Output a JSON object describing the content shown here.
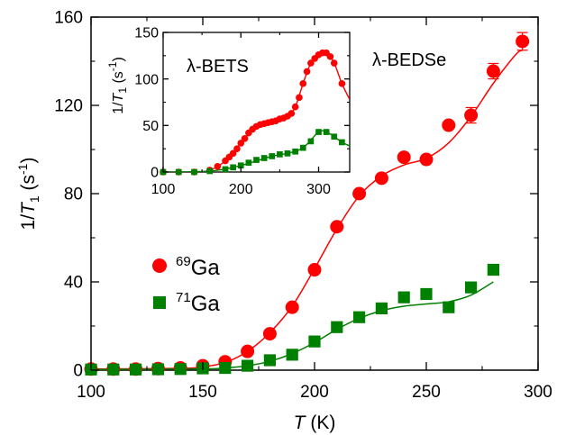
{
  "chart_data": [
    {
      "type": "scatter",
      "panel": "main",
      "xlabel_var": "T",
      "xlabel_unit": " (K)",
      "ylabel_pre": "1/",
      "ylabel_var": "T",
      "ylabel_sub": "1",
      "ylabel_unit": " (s",
      "ylabel_exp": "-1",
      "ylabel_close": ")",
      "xlim": [
        100,
        300
      ],
      "ylim": [
        0,
        160
      ],
      "xticks": [
        100,
        150,
        200,
        250,
        300
      ],
      "yticks": [
        0,
        40,
        80,
        120,
        160
      ],
      "annotation": "λ-BEDSe",
      "legend_placement": "center-left",
      "series": [
        {
          "name_sup": "69",
          "name_base": "Ga",
          "color": "#ff0000",
          "marker": "circle",
          "x": [
            100,
            110,
            120,
            130,
            140,
            150,
            160,
            170,
            180,
            190,
            200,
            210,
            220,
            230,
            240,
            250,
            260,
            270,
            280,
            293
          ],
          "y": [
            0.5,
            0.5,
            0.5,
            0.7,
            1.0,
            2.0,
            3.8,
            8.5,
            16.5,
            28.5,
            45.5,
            65.0,
            80.0,
            87.0,
            96.5,
            95.5,
            111.0,
            115.5,
            135.5,
            149.0
          ],
          "yerr": [
            0,
            0,
            0,
            0,
            0,
            0,
            0,
            0,
            0,
            0,
            0,
            0,
            0,
            0,
            0,
            0,
            0,
            3.5,
            3.5,
            4.0
          ],
          "fit_x": [
            100,
            140,
            150,
            160,
            170,
            180,
            190,
            200,
            210,
            220,
            230,
            240,
            250,
            260,
            270,
            280,
            290,
            293
          ],
          "fit_y": [
            0.5,
            0.8,
            1.5,
            3.5,
            8.5,
            17.0,
            29.0,
            46.0,
            64.0,
            79.0,
            88.0,
            93.0,
            96.0,
            103.0,
            115.0,
            130.0,
            143.0,
            145.0
          ]
        },
        {
          "name_sup": "71",
          "name_base": "Ga",
          "color": "#008000",
          "marker": "square",
          "x": [
            100,
            110,
            120,
            130,
            140,
            150,
            160,
            170,
            180,
            190,
            200,
            210,
            220,
            230,
            240,
            250,
            260,
            270,
            280
          ],
          "y": [
            0.3,
            0.3,
            0.3,
            0.4,
            0.5,
            0.8,
            1.0,
            2.0,
            4.5,
            7.0,
            13.0,
            19.5,
            24.0,
            28.0,
            33.0,
            34.5,
            28.5,
            37.5,
            45.5
          ],
          "fit_x": [
            100,
            150,
            160,
            170,
            180,
            190,
            200,
            210,
            220,
            230,
            240,
            250,
            260,
            270,
            280
          ],
          "fit_y": [
            0.3,
            0.6,
            1.0,
            2.0,
            4.0,
            7.5,
            12.5,
            18.5,
            23.5,
            27.0,
            29.0,
            30.0,
            31.0,
            34.0,
            40.0
          ]
        }
      ]
    },
    {
      "type": "scatter",
      "panel": "inset",
      "ylabel_pre": "1/",
      "ylabel_var": "T",
      "ylabel_sub": "1",
      "ylabel_unit": " (s",
      "ylabel_exp": "-1",
      "ylabel_close": ")",
      "xlim": [
        100,
        340
      ],
      "ylim": [
        0,
        150
      ],
      "xticks": [
        100,
        200,
        300
      ],
      "yticks": [
        0,
        50,
        100,
        150
      ],
      "annotation": "λ-BETS",
      "series": [
        {
          "color": "#ff0000",
          "marker": "circle",
          "x": [
            100,
            120,
            140,
            160,
            170,
            180,
            185,
            190,
            195,
            200,
            205,
            210,
            215,
            220,
            225,
            230,
            235,
            240,
            245,
            250,
            255,
            260,
            265,
            270,
            275,
            280,
            285,
            290,
            295,
            300,
            305,
            310,
            315,
            320,
            330
          ],
          "y": [
            0,
            0,
            0,
            2,
            6,
            12,
            16,
            20,
            25,
            31,
            36,
            42,
            46,
            49,
            51,
            52,
            53,
            54,
            55,
            57,
            58,
            60,
            63,
            70,
            80,
            95,
            108,
            117,
            122,
            126,
            128,
            128,
            124,
            117,
            95
          ],
          "fit_x": [
            100,
            140,
            160,
            180,
            200,
            220,
            240,
            260,
            270,
            280,
            290,
            300,
            310,
            320,
            330,
            340
          ],
          "fit_y": [
            0,
            0,
            2,
            12,
            31,
            49,
            54,
            60,
            70,
            95,
            117,
            126,
            128,
            117,
            95,
            78
          ]
        },
        {
          "color": "#008000",
          "marker": "square",
          "x": [
            100,
            120,
            140,
            160,
            180,
            190,
            200,
            210,
            220,
            230,
            240,
            250,
            260,
            270,
            280,
            290,
            300,
            310,
            320,
            330
          ],
          "y": [
            0,
            0,
            0,
            1,
            3,
            5,
            7,
            10,
            13,
            15,
            17,
            19,
            20,
            22,
            26,
            33,
            43,
            43,
            38,
            32
          ],
          "fit_x": [
            100,
            160,
            200,
            240,
            260,
            280,
            300,
            310,
            320,
            330,
            340
          ],
          "fit_y": [
            0,
            1,
            7,
            17,
            20,
            26,
            43,
            43,
            38,
            32,
            28
          ]
        }
      ]
    }
  ]
}
